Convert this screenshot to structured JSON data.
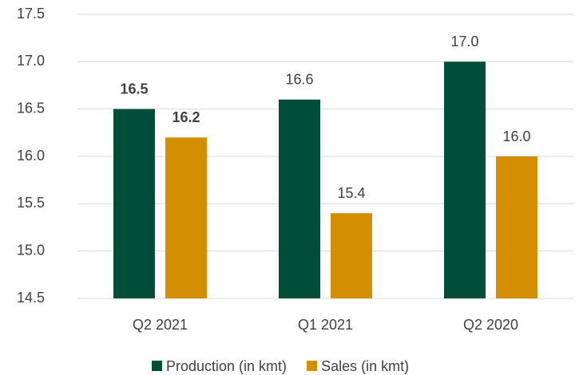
{
  "chart_data": {
    "type": "bar",
    "categories": [
      "Q2 2021",
      "Q1 2021",
      "Q2 2020"
    ],
    "series": [
      {
        "name": "Production (in kmt)",
        "color": "#004d3a",
        "values": [
          16.5,
          16.6,
          17.0
        ],
        "value_labels": [
          "16.5",
          "16.6",
          "17.0"
        ]
      },
      {
        "name": "Sales (in kmt)",
        "color": "#d48f00",
        "values": [
          16.2,
          15.4,
          16.0
        ],
        "value_labels": [
          "16.2",
          "15.4",
          "16.0"
        ]
      }
    ],
    "ylim": [
      14.5,
      17.5
    ],
    "yticks": [
      14.5,
      {
        "value": 15,
        "label": "15.0"
      },
      15.5,
      {
        "value": 16,
        "label": "16.0"
      },
      16.5,
      {
        "value": 17,
        "label": "17.0"
      },
      17.5
    ],
    "grid": true,
    "legend": "bottom"
  }
}
